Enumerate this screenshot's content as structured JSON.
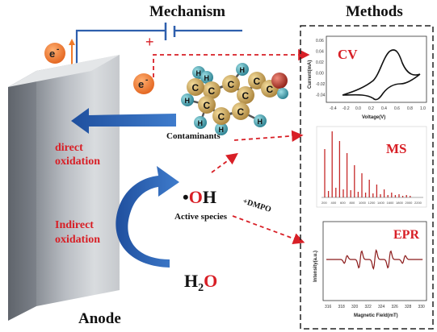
{
  "headings": {
    "mechanism": "Mechanism",
    "methods": "Methods"
  },
  "circuit": {
    "plus": "+",
    "electron_top": "e",
    "electron_mid": "e",
    "electron_sup": "-"
  },
  "molecule": {
    "atoms_c": "C",
    "atoms_h": "H",
    "label": "Contaminants"
  },
  "anode": {
    "label": "Anode",
    "direct": [
      "direct",
      "oxidation"
    ],
    "indirect": [
      "Indirect",
      "oxidation"
    ]
  },
  "species": {
    "oh_dot": "•",
    "oh_o": "O",
    "oh_h": "H",
    "active_label": "Active species",
    "dmpo": "+DMPO",
    "water_h": "H",
    "water_sub": "2",
    "water_o": "O"
  },
  "panels": {
    "cv": {
      "title": "CV",
      "xlabel": "Voltage(V)",
      "ylabel": "Current(mA)",
      "xticks": [
        "-0.4",
        "-0.2",
        "0.0",
        "0.2",
        "0.4",
        "0.6",
        "0.8",
        "1.0"
      ],
      "yticks": [
        "0.06",
        "0.04",
        "0.02",
        "0.00",
        "-0.02",
        "-0.04"
      ]
    },
    "ms": {
      "title": "MS",
      "xticks": [
        "200",
        "400",
        "600",
        "800",
        "1000",
        "1200",
        "1400",
        "1600",
        "1800",
        "2000",
        "2200"
      ]
    },
    "epr": {
      "title": "EPR",
      "xlabel": "Magnetic Field(mT)",
      "ylabel": "Intensity(a.u.)",
      "xticks": [
        "316",
        "318",
        "320",
        "322",
        "324",
        "326",
        "328",
        "330"
      ]
    }
  },
  "colors": {
    "red": "#d81f26",
    "blue": "#2e5fad",
    "orange": "#f07a2b",
    "dark_red": "#8b1a1a",
    "carbon": "#cfa85a",
    "hydrogen": "#3fa7b5",
    "oxygen": "#c0392b"
  }
}
